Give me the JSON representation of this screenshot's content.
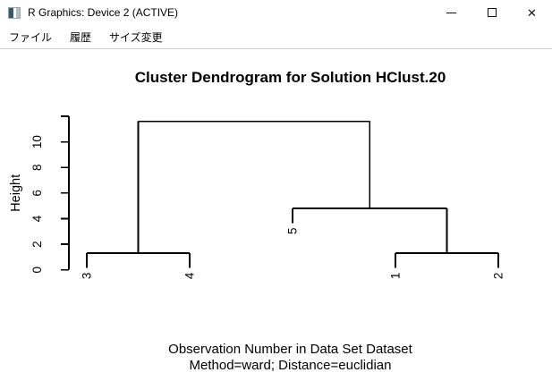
{
  "window": {
    "title": "R Graphics: Device 2 (ACTIVE)",
    "icons": {
      "close": "✕"
    }
  },
  "menu": {
    "items": [
      "ファイル",
      "履歴",
      "サイズ変更"
    ]
  },
  "chart_data": {
    "type": "dendrogram",
    "title": "Cluster Dendrogram for Solution HClust.20",
    "xlabel": "Observation Number in Data Set Dataset",
    "sublabel": "Method=ward; Distance=euclidian",
    "ylabel": "Height",
    "ylim": [
      0,
      12
    ],
    "yticks": [
      0,
      2,
      4,
      6,
      8,
      10
    ],
    "unlabeled_top_tick": 12,
    "grid": false,
    "leaf_order": [
      "3",
      "4",
      "5",
      "1",
      "2"
    ],
    "hang": 1.15,
    "merges": [
      {
        "members": [
          "3",
          "4"
        ],
        "height": 1.3
      },
      {
        "members": [
          "1",
          "2"
        ],
        "height": 1.3
      },
      {
        "members": [
          "5",
          "(1,2)"
        ],
        "height": 4.8
      },
      {
        "members": [
          "(3,4)",
          "(5,(1,2))"
        ],
        "height": 11.6
      }
    ],
    "tree": {
      "height": 11.6,
      "children": [
        {
          "height": 1.3,
          "children": [
            {
              "leaf": "3"
            },
            {
              "leaf": "4"
            }
          ]
        },
        {
          "height": 4.8,
          "children": [
            {
              "leaf": "5"
            },
            {
              "height": 1.3,
              "children": [
                {
                  "leaf": "1"
                },
                {
                  "leaf": "2"
                }
              ]
            }
          ]
        }
      ]
    }
  },
  "colors": {
    "line": "#000000",
    "text": "#000000",
    "background": "#ffffff",
    "menu_border": "#d4d4d4"
  }
}
